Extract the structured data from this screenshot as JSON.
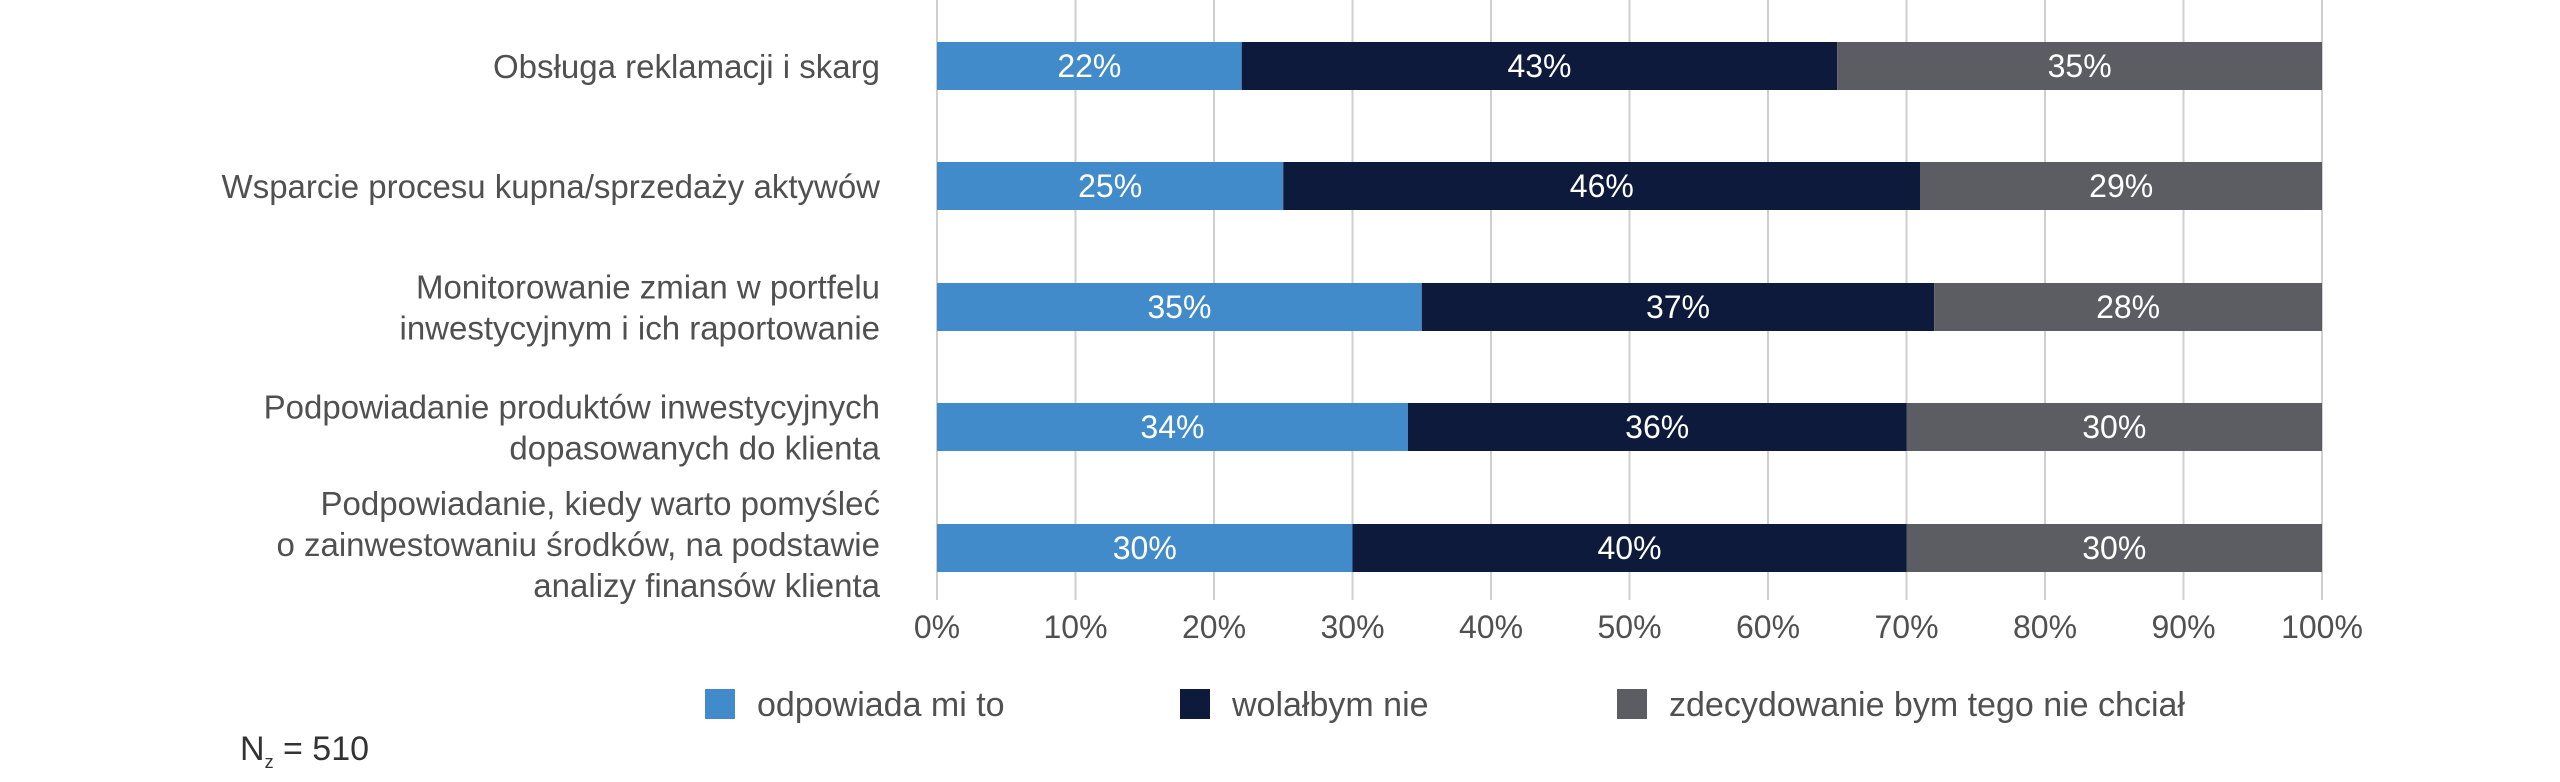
{
  "chart_data": {
    "type": "bar",
    "orientation": "horizontal",
    "stacked": true,
    "categories": [
      [
        "Obsługa reklamacji i skarg"
      ],
      [
        "Wsparcie procesu kupna/sprzedaży aktywów"
      ],
      [
        "Monitorowanie zmian w portfelu",
        "inwestycyjnym i ich raportowanie"
      ],
      [
        "Podpowiadanie produktów inwestycyjnych",
        "dopasowanych do klienta"
      ],
      [
        "Podpowiadanie, kiedy warto pomyśleć",
        "o zainwestowaniu środków, na podstawie",
        "analizy finansów klienta"
      ]
    ],
    "series": [
      {
        "name": "odpowiada mi to",
        "color": "#428bca",
        "values": [
          22,
          25,
          35,
          34,
          30
        ]
      },
      {
        "name": "wolałbym nie",
        "color": "#0d1a3c",
        "values": [
          43,
          46,
          37,
          36,
          40
        ]
      },
      {
        "name": "zdecydowanie bym tego nie chciał",
        "color": "#5b5d62",
        "values": [
          35,
          29,
          28,
          30,
          30
        ]
      }
    ],
    "xlim": [
      0,
      100
    ],
    "xticks": [
      "0%",
      "10%",
      "20%",
      "30%",
      "40%",
      "50%",
      "60%",
      "70%",
      "80%",
      "90%",
      "100%"
    ],
    "value_suffix": "%",
    "grid": "vertical",
    "legend_position": "bottom"
  },
  "footnote": {
    "prefix": "N",
    "subscript": "z",
    "value": " = 510"
  }
}
